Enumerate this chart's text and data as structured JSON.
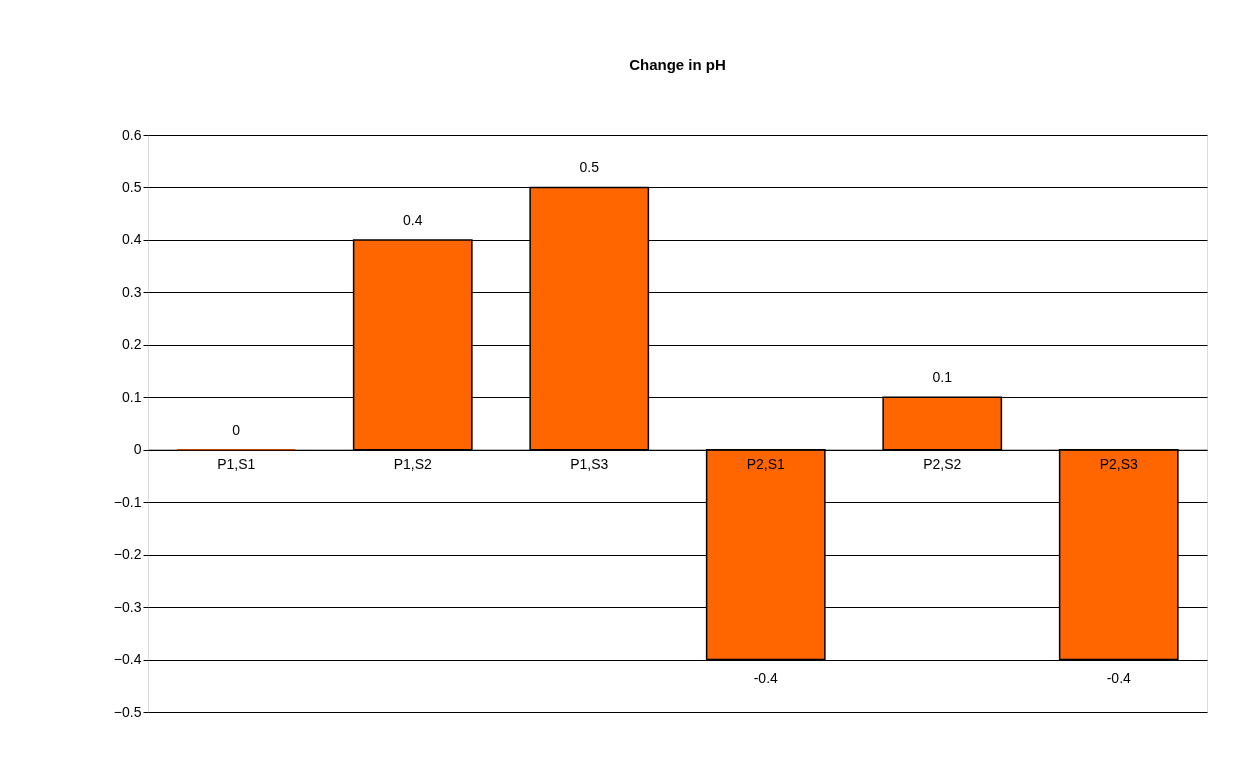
{
  "chart_data": {
    "type": "bar",
    "title": "Change in pH",
    "categories": [
      "P1,S1",
      "P1,S2",
      "P1,S3",
      "P2,S1",
      "P2,S2",
      "P2,S3"
    ],
    "values": [
      0,
      0.4,
      0.5,
      -0.4,
      0.1,
      -0.4
    ],
    "color": "#ff6600",
    "ylim": [
      -0.5,
      0.6
    ],
    "yticks": [
      -0.5,
      -0.4,
      -0.3,
      -0.2,
      -0.1,
      0,
      0.1,
      0.2,
      0.3,
      0.4,
      0.5,
      0.6
    ],
    "grid": "y",
    "data_labels": true
  }
}
